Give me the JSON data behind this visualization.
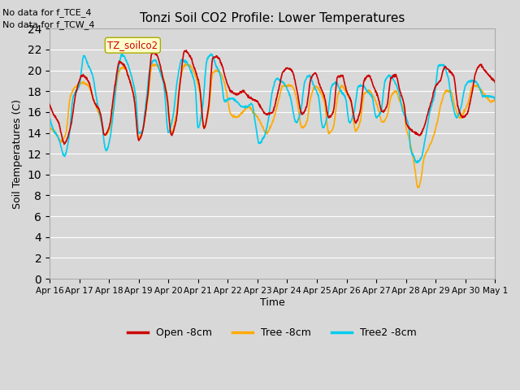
{
  "title": "Tonzi Soil CO2 Profile: Lower Temperatures",
  "xlabel": "Time",
  "ylabel": "Soil Temperatures (C)",
  "annotation1": "No data for f_TCE_4",
  "annotation2": "No data for f_TCW_4",
  "watermark": "TZ_soilco2",
  "legend_labels": [
    "Open -8cm",
    "Tree -8cm",
    "Tree2 -8cm"
  ],
  "legend_colors": [
    "#cc0000",
    "#ffaa00",
    "#00ccee"
  ],
  "ylim": [
    0,
    24
  ],
  "yticks": [
    0,
    2,
    4,
    6,
    8,
    10,
    12,
    14,
    16,
    18,
    20,
    22,
    24
  ],
  "bg_color": "#d8d8d8",
  "plot_bg": "#d8d8d8",
  "grid_color": "#ffffff",
  "line_width": 1.2,
  "x_labels": [
    "Apr 16",
    "Apr 17",
    "Apr 18",
    "Apr 19",
    "Apr 20",
    "Apr 21",
    "Apr 22",
    "Apr 23",
    "Apr 24",
    "Apr 25",
    "Apr 26",
    "Apr 27",
    "Apr 28",
    "Apr 29",
    "Apr 30",
    "May 1"
  ]
}
